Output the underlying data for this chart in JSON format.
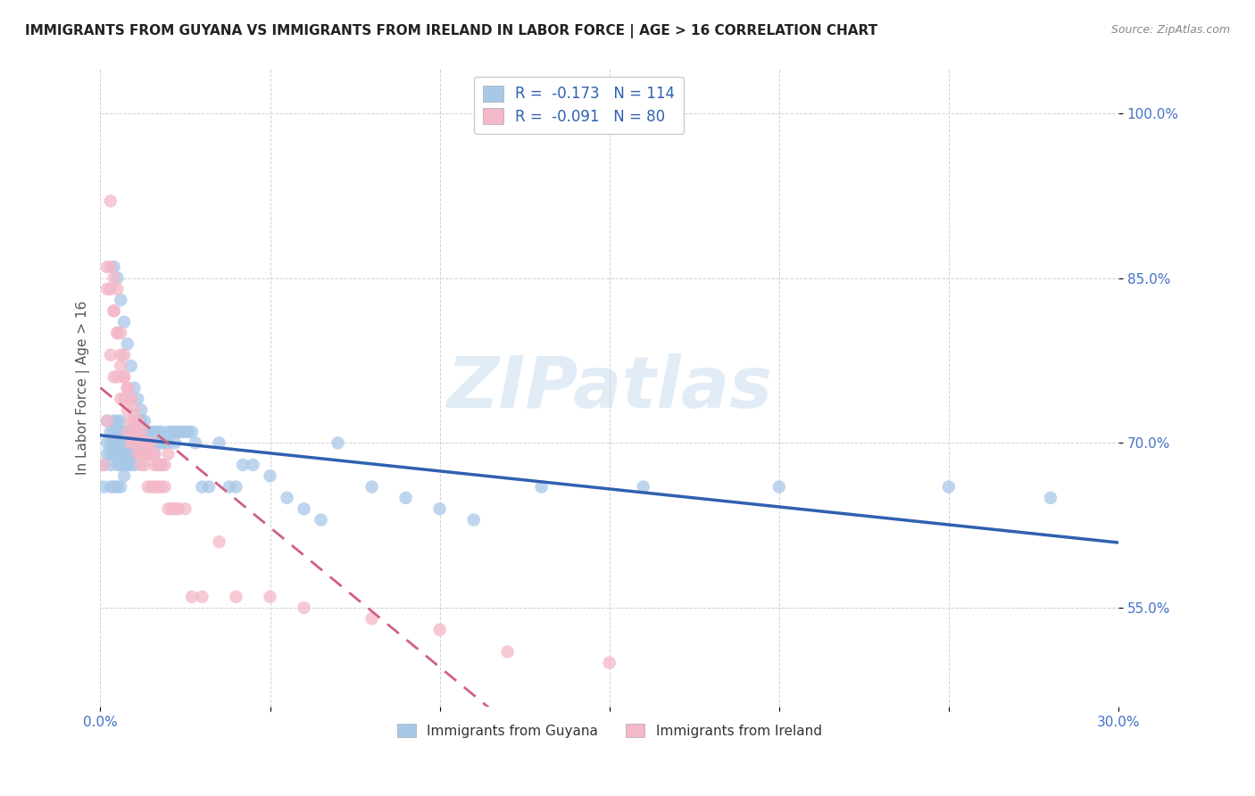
{
  "title": "IMMIGRANTS FROM GUYANA VS IMMIGRANTS FROM IRELAND IN LABOR FORCE | AGE > 16 CORRELATION CHART",
  "source": "Source: ZipAtlas.com",
  "ylabel": "In Labor Force | Age > 16",
  "yticks": [
    "55.0%",
    "70.0%",
    "85.0%",
    "100.0%"
  ],
  "ytick_vals": [
    0.55,
    0.7,
    0.85,
    1.0
  ],
  "xlim": [
    0.0,
    0.3
  ],
  "ylim": [
    0.46,
    1.04
  ],
  "guyana_color": "#a8c8e8",
  "ireland_color": "#f4b8c8",
  "guyana_line_color": "#3060b0",
  "ireland_line_color": "#d06080",
  "guyana_x": [
    0.001,
    0.001,
    0.002,
    0.002,
    0.002,
    0.003,
    0.003,
    0.003,
    0.003,
    0.003,
    0.004,
    0.004,
    0.004,
    0.004,
    0.004,
    0.005,
    0.005,
    0.005,
    0.005,
    0.005,
    0.005,
    0.006,
    0.006,
    0.006,
    0.006,
    0.006,
    0.006,
    0.007,
    0.007,
    0.007,
    0.007,
    0.007,
    0.008,
    0.008,
    0.008,
    0.008,
    0.009,
    0.009,
    0.009,
    0.009,
    0.01,
    0.01,
    0.01,
    0.01,
    0.01,
    0.011,
    0.011,
    0.011,
    0.012,
    0.012,
    0.012,
    0.013,
    0.013,
    0.013,
    0.014,
    0.014,
    0.015,
    0.015,
    0.015,
    0.016,
    0.016,
    0.017,
    0.017,
    0.018,
    0.018,
    0.019,
    0.02,
    0.02,
    0.021,
    0.022,
    0.022,
    0.023,
    0.024,
    0.025,
    0.026,
    0.027,
    0.028,
    0.03,
    0.032,
    0.035,
    0.038,
    0.04,
    0.042,
    0.045,
    0.05,
    0.055,
    0.06,
    0.065,
    0.07,
    0.08,
    0.09,
    0.1,
    0.11,
    0.13,
    0.16,
    0.2,
    0.25,
    0.28,
    0.004,
    0.005,
    0.006,
    0.007,
    0.008,
    0.009,
    0.01,
    0.011,
    0.012,
    0.013,
    0.014,
    0.015,
    0.016,
    0.017,
    0.018
  ],
  "guyana_y": [
    0.68,
    0.66,
    0.72,
    0.7,
    0.69,
    0.71,
    0.7,
    0.69,
    0.68,
    0.66,
    0.72,
    0.71,
    0.7,
    0.69,
    0.66,
    0.72,
    0.71,
    0.7,
    0.69,
    0.68,
    0.66,
    0.72,
    0.71,
    0.7,
    0.69,
    0.68,
    0.66,
    0.71,
    0.7,
    0.69,
    0.68,
    0.67,
    0.71,
    0.7,
    0.69,
    0.68,
    0.71,
    0.7,
    0.69,
    0.68,
    0.72,
    0.71,
    0.7,
    0.69,
    0.68,
    0.71,
    0.7,
    0.69,
    0.72,
    0.71,
    0.7,
    0.71,
    0.7,
    0.69,
    0.71,
    0.7,
    0.71,
    0.7,
    0.69,
    0.71,
    0.7,
    0.71,
    0.7,
    0.71,
    0.7,
    0.7,
    0.71,
    0.7,
    0.71,
    0.71,
    0.7,
    0.71,
    0.71,
    0.71,
    0.71,
    0.71,
    0.7,
    0.66,
    0.66,
    0.7,
    0.66,
    0.66,
    0.68,
    0.68,
    0.67,
    0.65,
    0.64,
    0.63,
    0.7,
    0.66,
    0.65,
    0.64,
    0.63,
    0.66,
    0.66,
    0.66,
    0.66,
    0.65,
    0.86,
    0.85,
    0.83,
    0.81,
    0.79,
    0.77,
    0.75,
    0.74,
    0.73,
    0.72,
    0.71,
    0.7,
    0.69,
    0.68,
    0.68
  ],
  "ireland_x": [
    0.001,
    0.002,
    0.002,
    0.003,
    0.003,
    0.003,
    0.004,
    0.004,
    0.004,
    0.005,
    0.005,
    0.005,
    0.006,
    0.006,
    0.006,
    0.007,
    0.007,
    0.007,
    0.008,
    0.008,
    0.008,
    0.009,
    0.009,
    0.009,
    0.01,
    0.01,
    0.01,
    0.011,
    0.011,
    0.011,
    0.012,
    0.012,
    0.012,
    0.013,
    0.013,
    0.013,
    0.014,
    0.014,
    0.014,
    0.015,
    0.015,
    0.015,
    0.016,
    0.016,
    0.016,
    0.017,
    0.017,
    0.018,
    0.018,
    0.019,
    0.019,
    0.02,
    0.02,
    0.021,
    0.022,
    0.023,
    0.025,
    0.027,
    0.03,
    0.035,
    0.04,
    0.05,
    0.06,
    0.08,
    0.1,
    0.12,
    0.15,
    0.002,
    0.003,
    0.004,
    0.005,
    0.006,
    0.007,
    0.008,
    0.009,
    0.01,
    0.011,
    0.012,
    0.013,
    0.014
  ],
  "ireland_y": [
    0.68,
    0.84,
    0.72,
    0.92,
    0.86,
    0.78,
    0.85,
    0.82,
    0.76,
    0.84,
    0.8,
    0.76,
    0.8,
    0.77,
    0.74,
    0.78,
    0.76,
    0.74,
    0.75,
    0.73,
    0.71,
    0.74,
    0.72,
    0.7,
    0.72,
    0.71,
    0.7,
    0.71,
    0.7,
    0.69,
    0.7,
    0.69,
    0.68,
    0.7,
    0.69,
    0.68,
    0.7,
    0.69,
    0.66,
    0.7,
    0.69,
    0.66,
    0.69,
    0.68,
    0.66,
    0.68,
    0.66,
    0.68,
    0.66,
    0.68,
    0.66,
    0.69,
    0.64,
    0.64,
    0.64,
    0.64,
    0.64,
    0.56,
    0.56,
    0.61,
    0.56,
    0.56,
    0.55,
    0.54,
    0.53,
    0.51,
    0.5,
    0.86,
    0.84,
    0.82,
    0.8,
    0.78,
    0.76,
    0.75,
    0.74,
    0.73,
    0.72,
    0.71,
    0.7,
    0.69
  ]
}
